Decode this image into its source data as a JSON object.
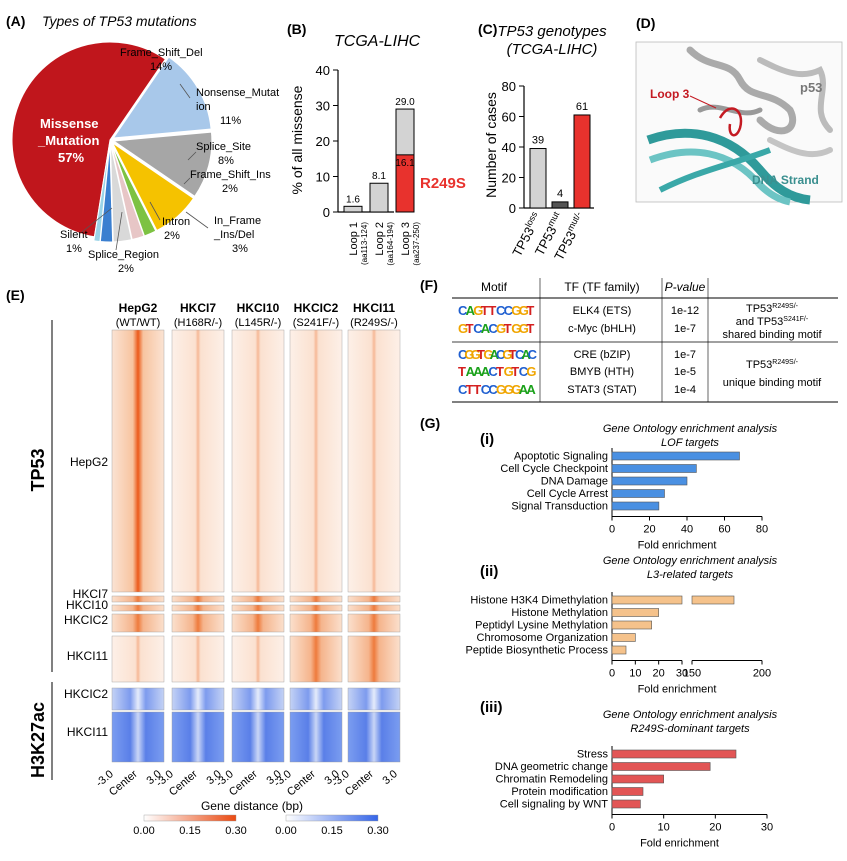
{
  "panelA": {
    "label": "(A)",
    "title": "Types of TP53 mutations",
    "slices": [
      {
        "name": "Missense_Mutation",
        "pct": 57,
        "color": "#c0161c"
      },
      {
        "name": "Frame_Shift_Del",
        "pct": 14,
        "color": "#a8c8ea"
      },
      {
        "name": "Nonsense_Mutation",
        "pct": 11,
        "color": "#a6a6a6"
      },
      {
        "name": "Splice_Site",
        "pct": 8,
        "color": "#f5c200"
      },
      {
        "name": "Frame_Shift_Ins",
        "pct": 2,
        "color": "#7dc242"
      },
      {
        "name": "Intron",
        "pct": 2,
        "color": "#e7c6c6"
      },
      {
        "name": "In_Frame_Ins/Del",
        "pct": 3,
        "color": "#d9d9d9"
      },
      {
        "name": "Splice_Region",
        "pct": 2,
        "color": "#3a7fd0"
      },
      {
        "name": "Silent",
        "pct": 1,
        "color": "#9bd4e8"
      }
    ],
    "labels": {
      "missense1": "Missense",
      "missense2": "_Mutation",
      "missense3": "57%",
      "fsdel1": "Frame_Shift_Del",
      "fsdel2": "14%",
      "nons1": "Nonsense_Mutat",
      "nons2": "ion",
      "nons3": "11%",
      "splice1": "Splice_Site",
      "splice2": "8%",
      "fsins1": "Frame_Shift_Ins",
      "fsins2": "2%",
      "intron1": "Intron",
      "intron2": "2%",
      "inframe1": "In_Frame",
      "inframe2": "_Ins/Del",
      "inframe3": "3%",
      "silent1": "Silent",
      "silent2": "1%",
      "sreg1": "Splice_Region",
      "sreg2": "2%"
    }
  },
  "panelB": {
    "label": "(B)",
    "title": "TCGA-LIHC",
    "ylabel": "% of all missense",
    "yticks": [
      "0",
      "10",
      "20",
      "30",
      "40"
    ],
    "highlight": "R249S",
    "chart_data": {
      "type": "bar",
      "categories": [
        "Loop 1",
        "Loop 2",
        "Loop 3"
      ],
      "subcategories": [
        "(aa113-124)",
        "(aa164-194)",
        "(aa237-250)"
      ],
      "values": [
        1.6,
        8.1,
        29.0
      ],
      "highlight_value": 16.1,
      "ylim": [
        0,
        40
      ]
    },
    "value_labels": [
      "1.6",
      "8.1",
      "29.0",
      "16.1"
    ]
  },
  "panelC": {
    "label": "(C)",
    "title1": "TP53 genotypes",
    "title2": "(TCGA-LIHC)",
    "ylabel": "Number of cases",
    "yticks": [
      "0",
      "20",
      "40",
      "60",
      "80"
    ],
    "chart_data": {
      "type": "bar",
      "categories": [
        "TP53loss",
        "TP53mut",
        "TP53mut/-"
      ],
      "values": [
        39,
        4,
        61
      ],
      "ylim": [
        0,
        80
      ],
      "colors": [
        "#d3d3d3",
        "#555555",
        "#e8322d"
      ]
    },
    "value_labels": [
      "39",
      "4",
      "61"
    ],
    "xlabels": [
      {
        "base": "TP53",
        "sup": "loss"
      },
      {
        "base": "TP53",
        "sup": "mut"
      },
      {
        "base": "TP53",
        "sup": "mut/-"
      }
    ]
  },
  "panelD": {
    "label": "(D)",
    "loop": "Loop 3",
    "p53": "p53",
    "dna": "DNA Strand"
  },
  "panelE": {
    "label": "(E)",
    "columns": [
      {
        "name": "HepG2",
        "geno": "(WT/WT)"
      },
      {
        "name": "HKCI7",
        "geno": "(H168R/-)"
      },
      {
        "name": "HKCI10",
        "geno": "(L145R/-)"
      },
      {
        "name": "HKCIC2",
        "geno": "(S241F/-)"
      },
      {
        "name": "HKCI11",
        "geno": "(R249S/-)"
      }
    ],
    "group1": "TP53",
    "group2": "H3K27ac",
    "rows_tp53": [
      "HepG2",
      "HKCI7",
      "HKCI10",
      "HKCIC2",
      "HKCI11"
    ],
    "rows_h3": [
      "HKCIC2",
      "HKCI11"
    ],
    "xticks": [
      "-3.0",
      "Center",
      "3.0"
    ],
    "xlabel": "Gene distance (bp)",
    "scale_ticks": [
      "0.00",
      "0.15",
      "0.30"
    ]
  },
  "panelF": {
    "label": "(F)",
    "headers": [
      "Motif",
      "TF (TF family)",
      "P-value"
    ],
    "rows": [
      {
        "motif": "CAGTTCCGGT",
        "tf": "ELK4 (ETS)",
        "p": "1e-12"
      },
      {
        "motif": "GTCACGTGGT",
        "tf": "c-Myc (bHLH)",
        "p": "1e-7"
      },
      {
        "motif": "CGGTGACGTCAC",
        "tf": "CRE (bZIP)",
        "p": "1e-7"
      },
      {
        "motif": "TAAACTGTCG",
        "tf": "BMYB (HTH)",
        "p": "1e-5"
      },
      {
        "motif": "CTTCCGGGAA",
        "tf": "STAT3 (STAT)",
        "p": "1e-4"
      }
    ],
    "note1a": "TP53",
    "note1sup": "R249S/-",
    "note1b": "and TP53",
    "note1bsup": "S241F/-",
    "note1c": "shared binding motif",
    "note2a": "TP53",
    "note2sup": "R249S/-",
    "note2b": "unique binding motif"
  },
  "panelG": {
    "label": "(G)",
    "xlabel": "Fold enrichment",
    "sub": [
      {
        "roman": "(i)",
        "title1": "Gene Ontology enrichment analysis",
        "title2": "LOF targets",
        "color": "#4a90e2",
        "chart_data": {
          "type": "bar",
          "categories": [
            "Apoptotic Signaling",
            "Cell Cycle Checkpoint",
            "DNA Damage",
            "Cell Cycle Arrest",
            "Signal Transduction"
          ],
          "values": [
            68,
            45,
            40,
            28,
            25
          ],
          "xlim": [
            0,
            80
          ]
        },
        "xticks": [
          "0",
          "20",
          "40",
          "60",
          "80"
        ]
      },
      {
        "roman": "(ii)",
        "title1": "Gene Ontology enrichment analysis",
        "title2": "L3-related targets",
        "color": "#f5c28b",
        "chart_data": {
          "type": "bar",
          "categories": [
            "Histone H3K4 Dimethylation",
            "Histone Methylation",
            "Peptidyl Lysine Methylation",
            "Chromosome Organization",
            "Peptide Biosynthetic Process"
          ],
          "values": [
            180,
            20,
            17,
            10,
            6
          ],
          "axis_break": [
            30,
            150
          ],
          "xlim": [
            0,
            200
          ]
        },
        "xticks": [
          "0",
          "10",
          "20",
          "30",
          "150",
          "200"
        ]
      },
      {
        "roman": "(iii)",
        "title1": "Gene Ontology enrichment analysis",
        "title2": "R249S-dominant targets",
        "color": "#e25555",
        "chart_data": {
          "type": "bar",
          "categories": [
            "Stress",
            "DNA geometric change",
            "Chromatin Remodeling",
            "Protein modification",
            "Cell signaling by WNT"
          ],
          "values": [
            24,
            19,
            10,
            6,
            5.5
          ],
          "xlim": [
            0,
            30
          ]
        },
        "xticks": [
          "0",
          "10",
          "20",
          "30"
        ]
      }
    ]
  }
}
